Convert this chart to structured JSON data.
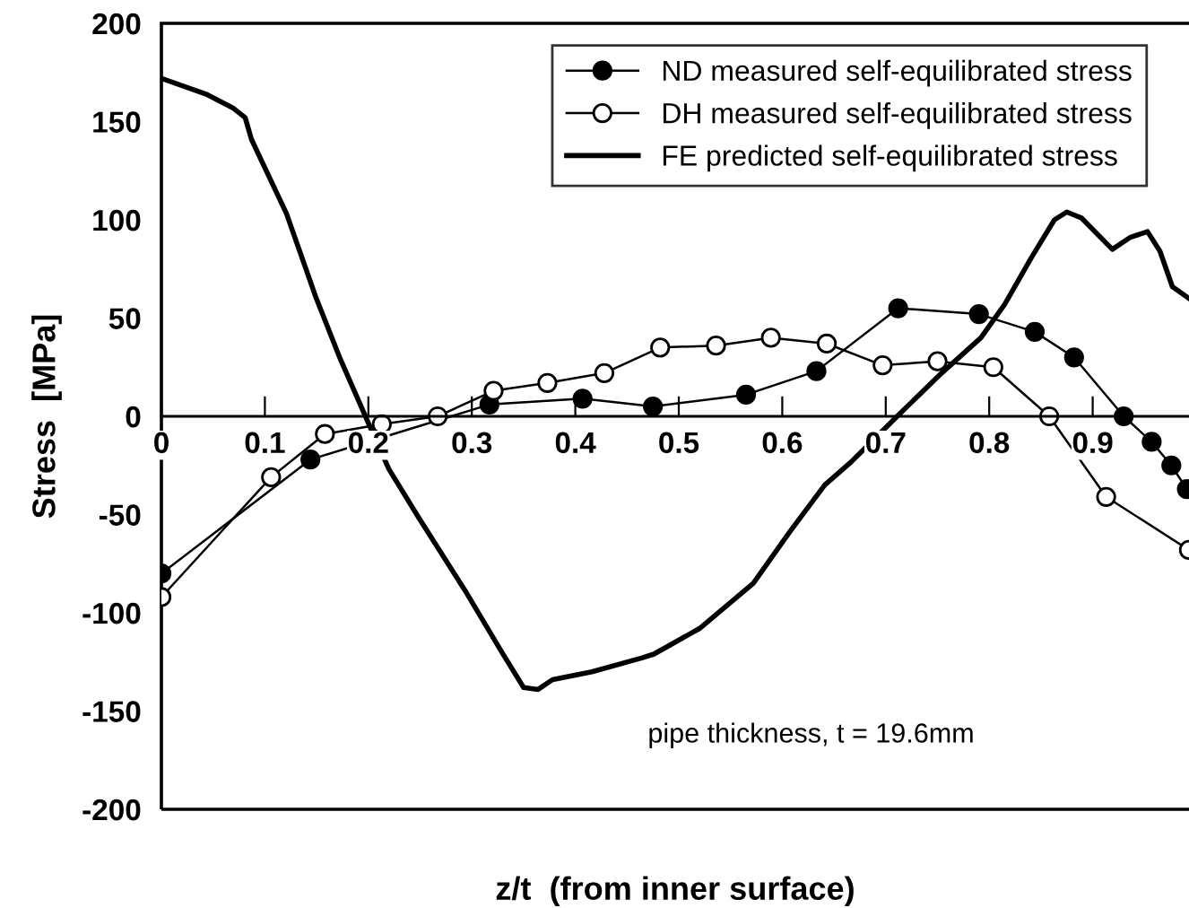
{
  "chart_data": {
    "type": "line",
    "xlabel": "z/t  (from inner surface)",
    "ylabel": "Stress  [MPa]",
    "xlim": [
      0,
      1
    ],
    "ylim": [
      -200,
      200
    ],
    "xticks": [
      0,
      0.1,
      0.2,
      0.3,
      0.4,
      0.5,
      0.6,
      0.7,
      0.8,
      0.9
    ],
    "yticks": [
      -200,
      -150,
      -100,
      -50,
      0,
      50,
      100,
      150,
      200
    ],
    "grid": false,
    "legend": "top right",
    "annotations": [
      "pipe thickness, t = 19.6mm"
    ],
    "series": [
      {
        "name": "ND measured self-equilibrated stress",
        "color": "#000000",
        "marker": "circle",
        "x": [
          0,
          0.144,
          0.317,
          0.407,
          0.475,
          0.565,
          0.633,
          0.712,
          0.79,
          0.844,
          0.882,
          0.93,
          0.957,
          0.976,
          0.991
        ],
        "values": [
          -80,
          -22,
          6,
          9,
          5,
          11,
          23,
          55,
          52,
          43,
          30,
          0,
          -13,
          -25,
          -37
        ]
      },
      {
        "name": "DH measured self-equilibrated stress",
        "color": "#000000",
        "marker": "circle",
        "colors": [
          "#ffffff",
          "#ffffff",
          "#ffffff",
          "#ffffff",
          "#ffffff",
          "#ffffff",
          "#ffffff",
          "#ffffff",
          "#ffffff",
          "#ffffff",
          "#ffffff",
          "#ffffff",
          "#ffffff",
          "#ffffff",
          "#ffffff",
          "#ffffff",
          "#ffffff",
          "#ffffff"
        ],
        "x": [
          0,
          0.106,
          0.158,
          0.213,
          0.267,
          0.321,
          0.373,
          0.428,
          0.482,
          0.536,
          0.589,
          0.643,
          0.697,
          0.75,
          0.804,
          0.858,
          0.913,
          0.993
        ],
        "values": [
          -92,
          -31,
          -9,
          -4,
          0,
          13,
          17,
          22,
          35,
          36,
          40,
          37,
          26,
          28,
          25,
          0,
          -41,
          -68
        ]
      },
      {
        "name": "FE predicted self-equilibrated stress",
        "color": "#000000",
        "marker": "none",
        "x": [
          0,
          0.043,
          0.069,
          0.081,
          0.087,
          0.121,
          0.149,
          0.173,
          0.203,
          0.22,
          0.248,
          0.295,
          0.329,
          0.35,
          0.364,
          0.378,
          0.416,
          0.464,
          0.476,
          0.52,
          0.572,
          0.607,
          0.641,
          0.667,
          0.711,
          0.754,
          0.792,
          0.815,
          0.841,
          0.863,
          0.875,
          0.889,
          0.919,
          0.936,
          0.953,
          0.965,
          0.977,
          0.993
        ],
        "values": [
          172,
          164,
          157,
          152,
          141,
          103,
          61,
          29,
          -7,
          -27,
          -51,
          -90,
          -120,
          -138,
          -139,
          -134,
          -130,
          -123,
          -121,
          -108,
          -85,
          -59,
          -35,
          -23,
          0,
          22,
          40,
          57,
          81,
          100,
          104,
          101,
          85,
          91,
          94,
          84,
          66,
          60
        ]
      }
    ]
  }
}
